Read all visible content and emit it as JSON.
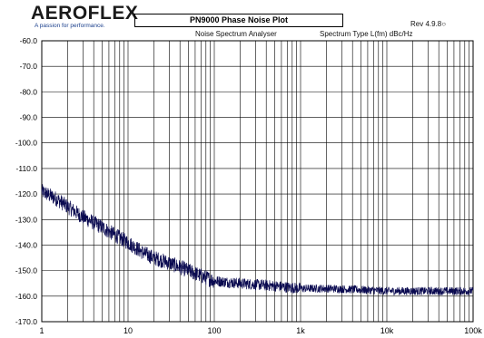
{
  "header": {
    "logo_text": "AEROFLEX",
    "tagline": "A passion for performance.",
    "title": "PN9000  Phase Noise Plot",
    "revision": "Rev 4.9.8",
    "analyser": "Noise Spectrum Analyser",
    "spectrum_type": "Spectrum Type  L(fm) dBc/Hz"
  },
  "colors": {
    "trace": "#0a0a50",
    "grid": "#000000",
    "background": "#ffffff",
    "logo_accent": "#0f4fa8"
  },
  "chart_data": {
    "type": "line",
    "title": "PN9000  Phase Noise Plot",
    "xlabel": "",
    "ylabel": "",
    "xscale": "log",
    "xlim": [
      1,
      100000
    ],
    "ylim": [
      -170,
      -60
    ],
    "grid": true,
    "x_tick_labels": [
      "1",
      "10",
      "100",
      "1k",
      "10k",
      "100k"
    ],
    "y_tick_labels": [
      "-60.0",
      "-70.0",
      "-80.0",
      "-90.0",
      "-100.0",
      "-110.0",
      "-120.0",
      "-130.0",
      "-140.0",
      "-150.0",
      "-160.0",
      "-170.0"
    ],
    "series": [
      {
        "x": [
          1,
          1.5,
          2,
          3,
          5,
          7,
          10,
          15,
          20,
          30,
          50,
          70,
          100,
          200,
          500,
          1000,
          2000,
          5000,
          10000,
          20000,
          50000,
          100000
        ],
        "y": [
          -119,
          -122,
          -125,
          -129,
          -133,
          -136,
          -139,
          -143,
          -145,
          -147,
          -150,
          -152,
          -154,
          -155,
          -156,
          -157,
          -157,
          -157.5,
          -158,
          -158,
          -158,
          -158
        ]
      }
    ]
  }
}
